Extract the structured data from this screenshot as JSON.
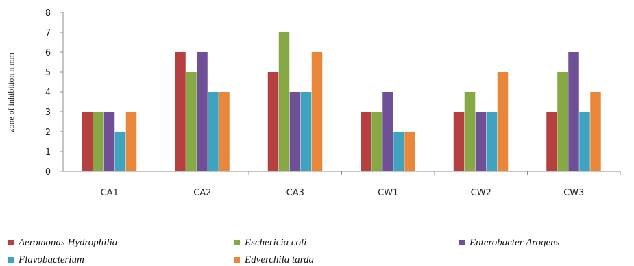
{
  "chart_data": {
    "type": "bar",
    "categories": [
      "CA1",
      "CA2",
      "CA3",
      "CW1",
      "CW2",
      "CW3"
    ],
    "series": [
      {
        "name": "Aeromonas Hydrophilia",
        "color": "#B5403F",
        "values": [
          3,
          6,
          5,
          3,
          3,
          3
        ]
      },
      {
        "name": "Eschericia coli",
        "color": "#86A845",
        "values": [
          3,
          5,
          7,
          3,
          4,
          5
        ]
      },
      {
        "name": "Enterobacter Arogens",
        "color": "#6F4F95",
        "values": [
          3,
          6,
          4,
          4,
          3,
          6
        ]
      },
      {
        "name": "Flavobacterium",
        "color": "#3FA3C0",
        "values": [
          2,
          4,
          4,
          2,
          3,
          3
        ]
      },
      {
        "name": "Edverchila tarda",
        "color": "#E8873A",
        "values": [
          3,
          4,
          6,
          2,
          5,
          4
        ]
      }
    ],
    "title": "",
    "xlabel": "",
    "ylabel": "zone of inhibition n mm",
    "ylim": [
      0,
      8
    ],
    "yticks": [
      0,
      1,
      2,
      3,
      4,
      5,
      6,
      7,
      8
    ],
    "grid": false,
    "legend_position": "bottom"
  }
}
